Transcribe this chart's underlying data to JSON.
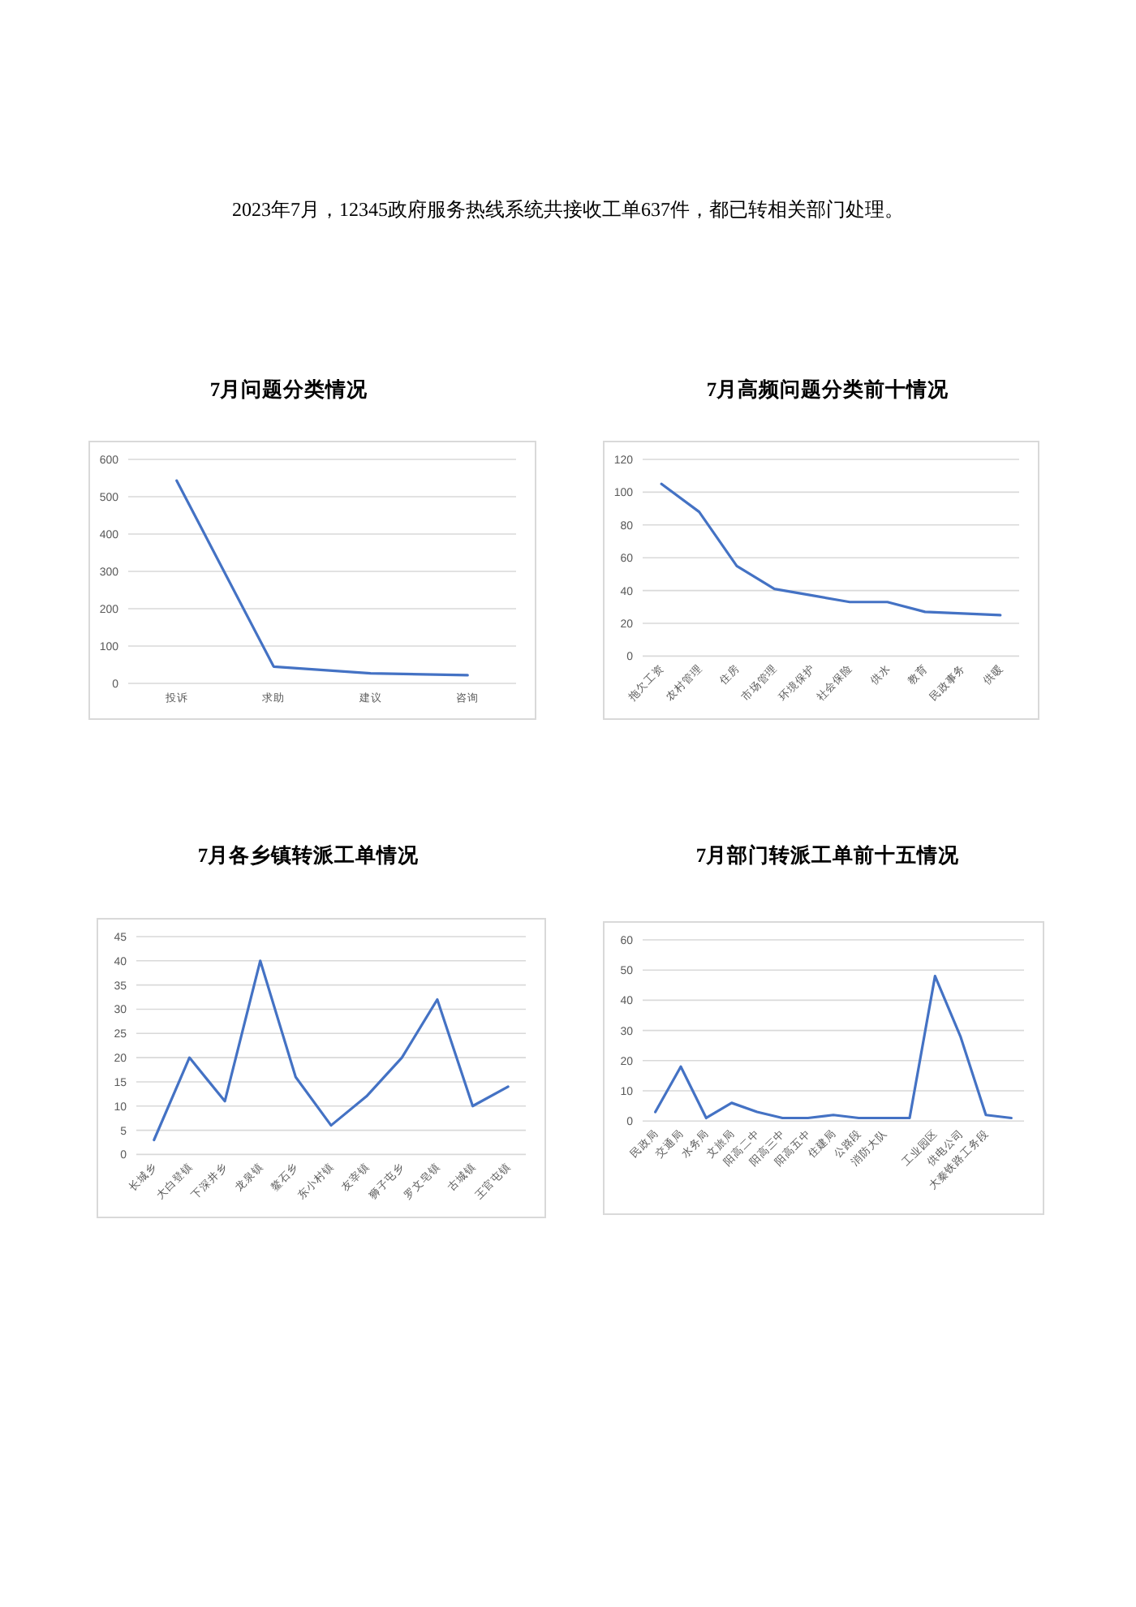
{
  "chart_data": [
    {
      "type": "line",
      "title": "7月问题分类情况",
      "annotations": [
        "2023年7月，12345政府服务热线系统共接收工单637件，都已转相关部门处理。"
      ],
      "categories": [
        "投诉",
        "求助",
        "建议",
        "咨询"
      ],
      "values": [
        543,
        45,
        27,
        22
      ],
      "color": "#4472c4",
      "ylim": [
        0,
        600
      ],
      "yticks": [
        0,
        100,
        200,
        300,
        400,
        500,
        600
      ],
      "grid": "y"
    },
    {
      "type": "line",
      "title": "7月高频问题分类前十情况",
      "categories": [
        "拖欠工资",
        "农村管理",
        "住房",
        "市场管理",
        "环境保护",
        "社会保险",
        "供水",
        "教育",
        "民政事务",
        "供暖"
      ],
      "values": [
        105,
        88,
        55,
        41,
        37,
        33,
        33,
        27,
        26,
        25
      ],
      "color": "#4472c4",
      "ylim": [
        0,
        120
      ],
      "yticks": [
        0,
        20,
        40,
        60,
        80,
        100,
        120
      ],
      "grid": "y"
    },
    {
      "type": "line",
      "title": "7月各乡镇转派工单情况",
      "categories": [
        "长城乡",
        "大白登镇",
        "下深井乡",
        "龙泉镇",
        "鳌石乡",
        "东小村镇",
        "友宰镇",
        "狮子屯乡",
        "罗文皂镇",
        "古城镇",
        "王官屯镇"
      ],
      "values": [
        3,
        20,
        11,
        40,
        16,
        6,
        12,
        20,
        32,
        10,
        14
      ],
      "color": "#4472c4",
      "ylim": [
        0,
        45
      ],
      "yticks": [
        0,
        5,
        10,
        15,
        20,
        25,
        30,
        35,
        40,
        45
      ],
      "grid": "y"
    },
    {
      "type": "line",
      "title": "7月部门转派工单前十五情况",
      "categories": [
        "民政局",
        "交通局",
        "水务局",
        "文旅局",
        "阳高二中",
        "阳高三中",
        "阳高五中",
        "住建局",
        "公路段",
        "消防大队",
        null,
        "工业园区",
        "供电公司",
        "大秦铁路工务段",
        null
      ],
      "values": [
        3,
        18,
        1,
        6,
        3,
        1,
        1,
        2,
        1,
        1,
        1,
        48,
        28,
        2,
        1
      ],
      "color": "#4472c4",
      "ylim": [
        0,
        60
      ],
      "yticks": [
        0,
        10,
        20,
        30,
        40,
        50,
        60
      ],
      "grid": "y"
    }
  ]
}
